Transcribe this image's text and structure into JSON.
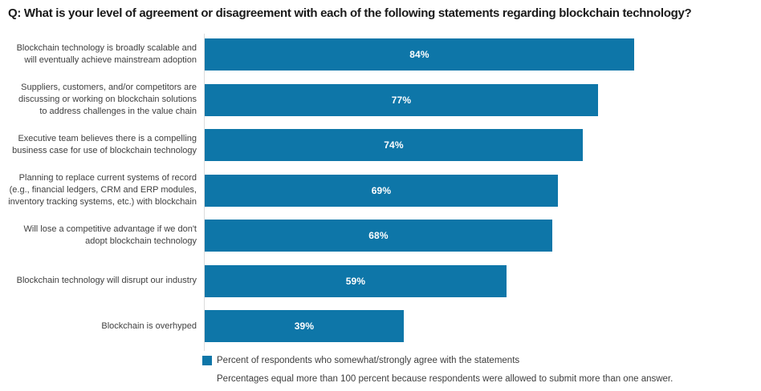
{
  "colors": {
    "bar": "#0E76A8",
    "axis_line": "#DCDCDC",
    "title_text": "#1A1A1A",
    "category_text": "#404040",
    "value_text": "#FFFFFF",
    "note_text": "#3D3D3D"
  },
  "chart_data": {
    "type": "bar",
    "orientation": "horizontal",
    "title": "Q: What is your level of agreement or disagreement with each of the following statements regarding blockchain technology?",
    "categories": [
      "Blockchain technology is broadly scalable and\nwill eventually achieve mainstream adoption",
      "Suppliers, customers, and/or competitors are\ndiscussing or working on blockchain solutions\nto address challenges in the value chain",
      "Executive team believes there is a compelling\nbusiness case for use of blockchain technology",
      "Planning to replace current systems of record\n(e.g., financial ledgers, CRM and ERP modules,\ninventory tracking systems, etc.) with blockchain",
      "Will lose a competitive advantage if we don't\nadopt blockchain technology",
      "Blockchain technology will disrupt our industry",
      "Blockchain is overhyped"
    ],
    "values": [
      84,
      77,
      74,
      69,
      68,
      59,
      39
    ],
    "value_labels": [
      "84%",
      "77%",
      "74%",
      "69%",
      "68%",
      "59%",
      "39%"
    ],
    "xlabel": "",
    "ylabel": "",
    "xlim": [
      0,
      100
    ],
    "grid": false,
    "legend": {
      "label": "Percent of respondents who somewhat/strongly agree with the statements",
      "swatch_color": "#0E76A8",
      "position": "bottom-left"
    },
    "footnote": "Percentages equal more than 100 percent because respondents were allowed to submit more than one answer."
  }
}
